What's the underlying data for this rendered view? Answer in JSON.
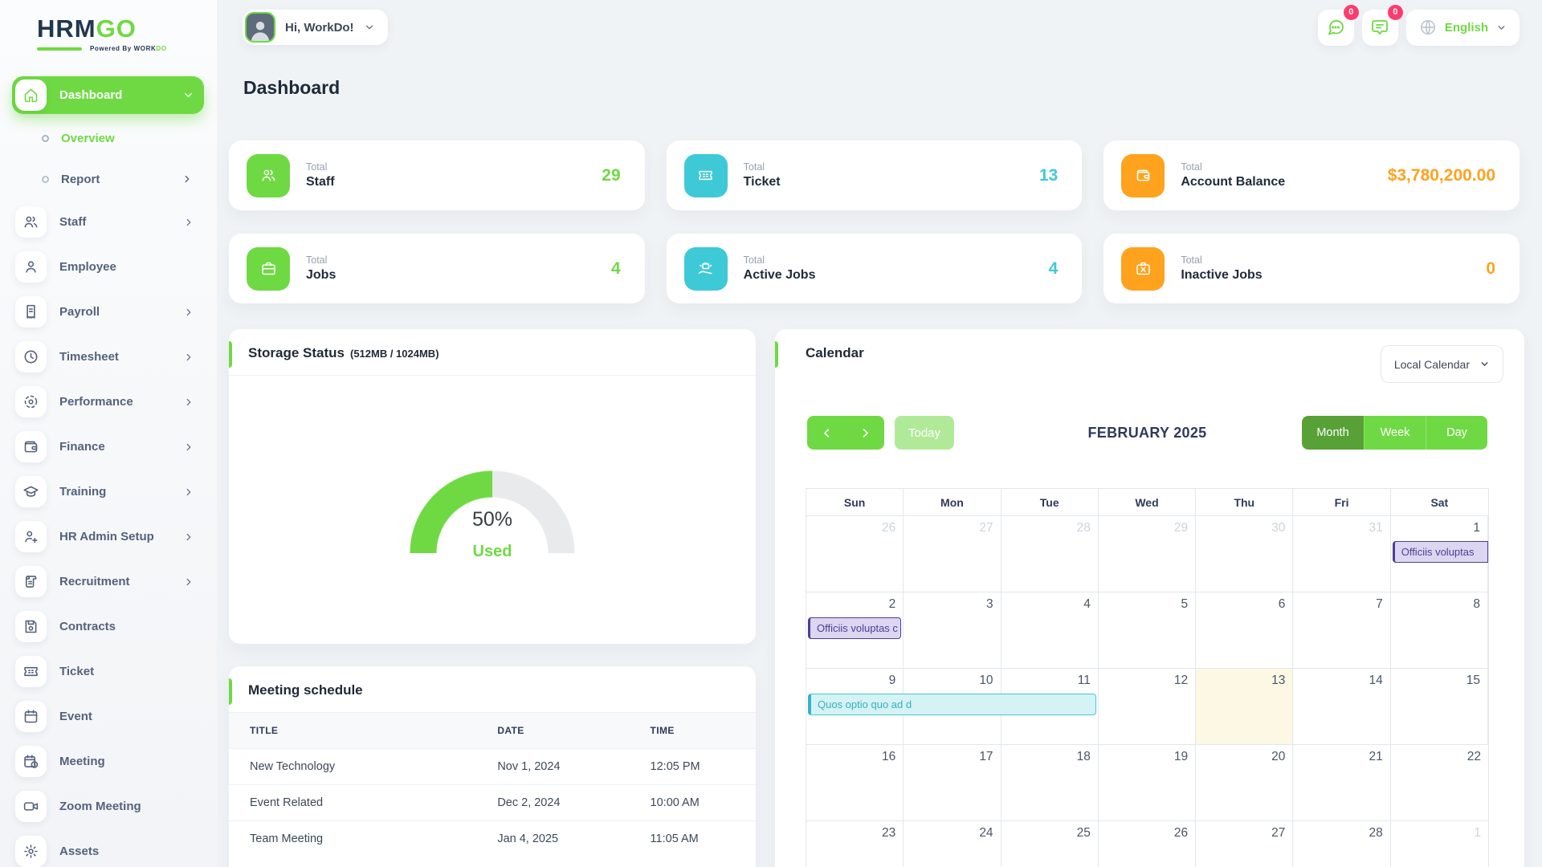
{
  "colors": {
    "green": "#6fd943",
    "green_dark": "#58a136",
    "teal": "#3ec9d6",
    "orange": "#ffa21d",
    "badge_red": "#ff3a6e",
    "event_purple": "#4f3e98",
    "event_teal": "#3ec9d6",
    "today_bg": "#fcf8e3"
  },
  "brand": {
    "name_part1": "HRM",
    "name_part2": "GO",
    "powered_prefix": "Powered By ",
    "powered_name1": "WORK",
    "powered_name2": "DO"
  },
  "header": {
    "greeting": "Hi, WorkDo!",
    "chat_badge": "0",
    "notification_badge": "0",
    "language": "English"
  },
  "page_title": "Dashboard",
  "sidebar": {
    "items": [
      {
        "label": "Dashboard",
        "icon": "home-icon",
        "active": true,
        "chevron": "down",
        "children": [
          {
            "label": "Overview",
            "active": true
          },
          {
            "label": "Report",
            "chevron": "right"
          }
        ]
      },
      {
        "label": "Staff",
        "icon": "users-icon",
        "chevron": "right"
      },
      {
        "label": "Employee",
        "icon": "user-icon"
      },
      {
        "label": "Payroll",
        "icon": "receipt-icon",
        "chevron": "right"
      },
      {
        "label": "Timesheet",
        "icon": "clock-icon",
        "chevron": "right"
      },
      {
        "label": "Performance",
        "icon": "target-icon",
        "chevron": "right"
      },
      {
        "label": "Finance",
        "icon": "wallet-icon",
        "chevron": "right"
      },
      {
        "label": "Training",
        "icon": "graduation-cap-icon",
        "chevron": "right"
      },
      {
        "label": "HR Admin Setup",
        "icon": "user-plus-icon",
        "chevron": "right"
      },
      {
        "label": "Recruitment",
        "icon": "scroll-icon",
        "chevron": "right"
      },
      {
        "label": "Contracts",
        "icon": "floppy-icon"
      },
      {
        "label": "Ticket",
        "icon": "ticket-icon"
      },
      {
        "label": "Event",
        "icon": "calendar-icon"
      },
      {
        "label": "Meeting",
        "icon": "calendar-clock-icon"
      },
      {
        "label": "Zoom Meeting",
        "icon": "video-icon"
      },
      {
        "label": "Assets",
        "icon": "gear-icon"
      }
    ]
  },
  "stat_cards": [
    {
      "top": "Total",
      "label": "Staff",
      "value": "29",
      "color": "green",
      "icon": "users-icon"
    },
    {
      "top": "Total",
      "label": "Ticket",
      "value": "13",
      "color": "teal",
      "icon": "ticket-icon"
    },
    {
      "top": "Total",
      "label": "Account Balance",
      "value": "$3,780,200.00",
      "color": "orange",
      "icon": "wallet-icon"
    },
    {
      "top": "Total",
      "label": "Jobs",
      "value": "4",
      "color": "green",
      "icon": "briefcase-icon"
    },
    {
      "top": "Total",
      "label": "Active Jobs",
      "value": "4",
      "color": "teal",
      "icon": "briefcase-hand-icon"
    },
    {
      "top": "Total",
      "label": "Inactive Jobs",
      "value": "0",
      "color": "orange",
      "icon": "briefcase-x-icon"
    }
  ],
  "storage": {
    "title": "Storage Status",
    "subtitle": "(512MB / 1024MB)",
    "percent": "50%",
    "used_label": "Used"
  },
  "meetings": {
    "title": "Meeting schedule",
    "columns": [
      "TITLE",
      "DATE",
      "TIME"
    ],
    "rows": [
      [
        "New Technology",
        "Nov 1, 2024",
        "12:05 PM"
      ],
      [
        "Event Related",
        "Dec 2, 2024",
        "10:00 AM"
      ],
      [
        "Team Meeting",
        "Jan 4, 2025",
        "11:05 AM"
      ]
    ]
  },
  "calendar": {
    "title": "Calendar",
    "source_selected": "Local Calendar",
    "today_label": "Today",
    "month_title": "FEBRUARY 2025",
    "views": [
      "Month",
      "Week",
      "Day"
    ],
    "active_view": "Month",
    "weekdays": [
      "Sun",
      "Mon",
      "Tue",
      "Wed",
      "Thu",
      "Fri",
      "Sat"
    ],
    "weeks": [
      [
        {
          "d": "26",
          "m": 1
        },
        {
          "d": "27",
          "m": 1
        },
        {
          "d": "28",
          "m": 1
        },
        {
          "d": "29",
          "m": 1
        },
        {
          "d": "30",
          "m": 1
        },
        {
          "d": "31",
          "m": 1
        },
        {
          "d": "1"
        }
      ],
      [
        {
          "d": "2"
        },
        {
          "d": "3"
        },
        {
          "d": "4"
        },
        {
          "d": "5"
        },
        {
          "d": "6"
        },
        {
          "d": "7"
        },
        {
          "d": "8"
        }
      ],
      [
        {
          "d": "9"
        },
        {
          "d": "10"
        },
        {
          "d": "11"
        },
        {
          "d": "12"
        },
        {
          "d": "13",
          "t": 1
        },
        {
          "d": "14"
        },
        {
          "d": "15"
        }
      ],
      [
        {
          "d": "16"
        },
        {
          "d": "17"
        },
        {
          "d": "18"
        },
        {
          "d": "19"
        },
        {
          "d": "20"
        },
        {
          "d": "21"
        },
        {
          "d": "22"
        }
      ],
      [
        {
          "d": "23"
        },
        {
          "d": "24"
        },
        {
          "d": "25"
        },
        {
          "d": "26"
        },
        {
          "d": "27"
        },
        {
          "d": "28"
        },
        {
          "d": "1",
          "m": 1
        }
      ]
    ],
    "events": [
      {
        "label": "Officiis voluptas",
        "week": 0,
        "col": 6,
        "span": 1,
        "type": "purple",
        "to_edge": true
      },
      {
        "label": "Officiis voluptas c",
        "week": 1,
        "col": 0,
        "span": 1,
        "type": "purple"
      },
      {
        "label": "Quos optio quo ad d",
        "week": 2,
        "col": 0,
        "span": 3,
        "type": "teal"
      }
    ]
  }
}
